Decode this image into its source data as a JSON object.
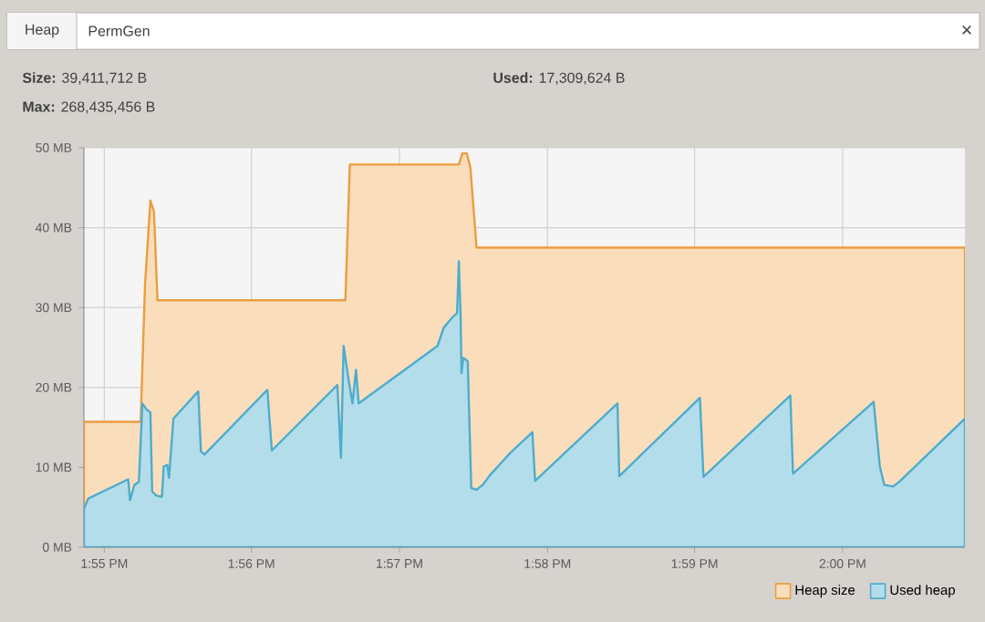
{
  "chart_data": {
    "type": "area",
    "annotations": [
      "Heap",
      "PermGen",
      "×",
      "**Size:** 39,411,712 B",
      "**Max:** 268,435,456 B",
      "**Used:** 17,309,624 B"
    ],
    "series": [
      {
        "name": "Heap size",
        "color": "#fadebc",
        "x": [
          13.9144,
          13.9208,
          13.9213,
          13.9219,
          13.9223,
          13.9227,
          13.9439,
          13.9444,
          13.9567,
          13.9571,
          13.9576,
          13.958,
          13.9587,
          14.0138
        ],
        "values": [
          15.7,
          15.7,
          33,
          43.4,
          42,
          30.9,
          30.9,
          47.9,
          47.9,
          49.3,
          49.3,
          47.5,
          37.5,
          37.5
        ]
      },
      {
        "name": "Used heap",
        "color": "#b4ddeb",
        "x": [
          13.9144,
          13.9149,
          13.9194,
          13.9196,
          13.9201,
          13.9206,
          13.921,
          13.9215,
          13.9219,
          13.9221,
          13.9225,
          13.9232,
          13.9234,
          13.9238,
          13.924,
          13.9245,
          13.9273,
          13.9276,
          13.928,
          13.9351,
          13.9356,
          13.943,
          13.9434,
          13.9437,
          13.9442,
          13.9447,
          13.9451,
          13.9454,
          13.9543,
          13.955,
          13.956,
          13.9565,
          13.9567,
          13.9569,
          13.957,
          13.9572,
          13.9577,
          13.9581,
          13.9587,
          13.9594,
          13.9602,
          13.9625,
          13.965,
          13.9653,
          13.9746,
          13.9748,
          13.9839,
          13.9843,
          13.9941,
          13.9944,
          14.0035,
          14.0042,
          14.0047,
          14.0057,
          14.0064,
          14.0138
        ],
        "values": [
          4.8,
          6.1,
          8.5,
          5.9,
          7.8,
          8.2,
          18.0,
          17.2,
          16.9,
          7.0,
          6.5,
          6.3,
          10.1,
          10.3,
          8.7,
          16.1,
          19.5,
          12.0,
          11.6,
          19.7,
          12.1,
          20.3,
          11.2,
          25.2,
          21.4,
          18.0,
          22.2,
          18.0,
          25.2,
          27.5,
          28.8,
          29.3,
          35.8,
          29.0,
          21.8,
          23.7,
          23.3,
          7.4,
          7.2,
          7.8,
          9.0,
          11.8,
          14.4,
          8.3,
          18.0,
          8.9,
          18.7,
          8.8,
          19.0,
          9.2,
          18.2,
          10.1,
          7.8,
          7.6,
          8.2,
          16.1
        ]
      }
    ],
    "xlim": [
      13.9144,
      14.0138
    ],
    "ylim": [
      0,
      50
    ],
    "xticks": [
      {
        "value": 13.9167,
        "label": "1:55 PM"
      },
      {
        "value": 13.9333,
        "label": "1:56 PM"
      },
      {
        "value": 13.95,
        "label": "1:57 PM"
      },
      {
        "value": 13.9667,
        "label": "1:58 PM"
      },
      {
        "value": 13.9833,
        "label": "1:59 PM"
      },
      {
        "value": 14.0,
        "label": "2:00 PM"
      }
    ],
    "yticks": [
      {
        "value": 0,
        "label": "0 MB"
      },
      {
        "value": 10,
        "label": "10 MB"
      },
      {
        "value": 20,
        "label": "20 MB"
      },
      {
        "value": 30,
        "label": "30 MB"
      },
      {
        "value": 40,
        "label": "40 MB"
      },
      {
        "value": 50,
        "label": "50 MB"
      }
    ],
    "grid": true,
    "legend": "bottom right",
    "marker": "none",
    "line_style": "solid"
  }
}
